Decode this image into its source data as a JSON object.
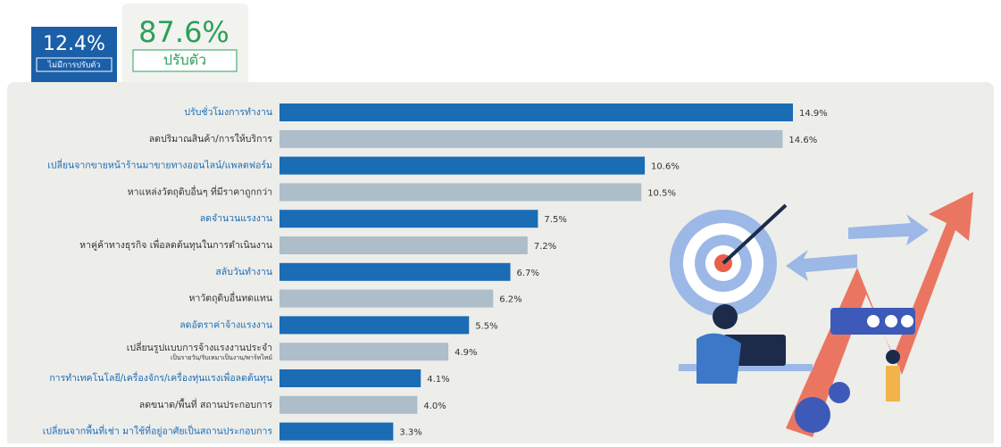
{
  "header": {
    "left_value": "12.4%",
    "left_label": "ไม่มีการปรับตัว",
    "right_value": "87.6%",
    "right_label": "ปรับตัว"
  },
  "chart_data": {
    "type": "bar",
    "orientation": "horizontal",
    "categories": [
      "ปรับชั่วโมงการทำงาน",
      "ลดปริมาณสินค้า/การให้บริการ",
      "เปลี่ยนจากขายหน้าร้านมาขายทางออนไลน์/แพลตฟอร์ม",
      "หาแหล่งวัตถุดิบอื่นๆ ที่มีราคาถูกกว่า",
      "ลดจำนวนแรงงาน",
      "หาคู่ค้าทางธุรกิจ เพื่อลดต้นทุนในการดำเนินงาน",
      "สลับวันทำงาน",
      "หาวัตถุดิบอื่นทดแทน",
      "ลดอัตราค่าจ้างแรงงาน",
      "เปลี่ยนรูปแบบการจ้างแรงงานประจำ",
      "การทำเทคโนโลยี/เครื่องจักร/เครื่องทุ่นแรงเพื่อลดต้นทุน",
      "ลดขนาด/พื้นที่ สถานประกอบการ",
      "เปลี่ยนจากพื้นที่เช่า มาใช้ที่อยู่อาศัยเป็นสถานประกอบการ"
    ],
    "category_sublabel": "เป็นรายวัน/รับเหมาเป็นงาน/พาร์ทไทม์",
    "values": [
      14.9,
      14.6,
      10.6,
      10.5,
      7.5,
      7.2,
      6.7,
      6.2,
      5.5,
      4.9,
      4.1,
      4.0,
      3.3
    ],
    "value_labels": [
      "14.9%",
      "14.6%",
      "10.6%",
      "10.5%",
      "7.5%",
      "7.2%",
      "6.7%",
      "6.2%",
      "5.5%",
      "4.9%",
      "4.1%",
      "4.0%",
      "3.3%"
    ],
    "colors": [
      "#1a6cb5",
      "#adbdca",
      "#1a6cb5",
      "#adbdca",
      "#1a6cb5",
      "#adbdca",
      "#1a6cb5",
      "#adbdca",
      "#1a6cb5",
      "#adbdca",
      "#1a6cb5",
      "#adbdca",
      "#1a6cb5"
    ],
    "label_colors": [
      "#1a6cb5",
      "#333333",
      "#1a6cb5",
      "#333333",
      "#1a6cb5",
      "#333333",
      "#1a6cb5",
      "#333333",
      "#1a6cb5",
      "#333333",
      "#1a6cb5",
      "#333333",
      "#1a6cb5"
    ]
  }
}
